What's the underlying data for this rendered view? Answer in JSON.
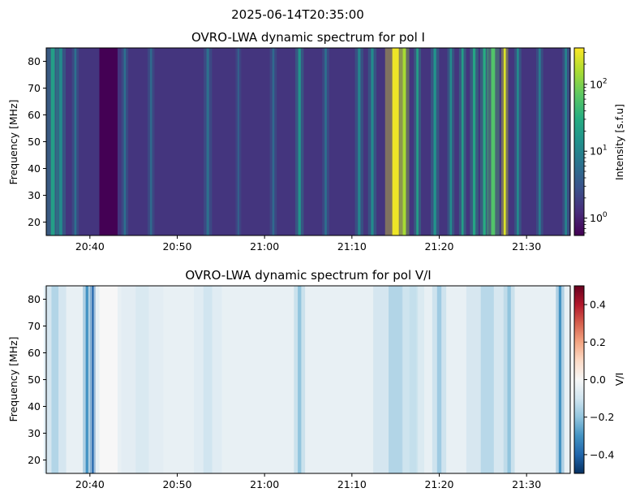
{
  "suptitle": "2025-06-14T20:35:00",
  "chart_data": [
    {
      "type": "heatmap",
      "title": "OVRO-LWA dynamic spectrum for pol I",
      "xlabel": "",
      "ylabel": "Frequency [MHz]",
      "x_range": [
        "20:35",
        "21:35"
      ],
      "x_ticks": [
        "20:40",
        "20:50",
        "21:00",
        "21:10",
        "21:20",
        "21:30"
      ],
      "ylim": [
        15,
        85
      ],
      "y_ticks": [
        20,
        30,
        40,
        50,
        60,
        70,
        80
      ],
      "colormap": "viridis",
      "colorbar": {
        "label": "Intensity [s.f.u]",
        "scale": "log",
        "range": [
          0.55,
          350
        ],
        "ticks": [
          {
            "base": "10",
            "exp": "0",
            "value": 1
          },
          {
            "base": "10",
            "exp": "1",
            "value": 10
          },
          {
            "base": "10",
            "exp": "2",
            "value": 100
          }
        ]
      },
      "background_level": 1.5,
      "features": [
        {
          "kind": "data-gap",
          "t_start": "20:41:05",
          "t_end": "20:43:10",
          "level": 0.55
        },
        {
          "kind": "burst",
          "t": "20:35:45",
          "width_min": 0.45,
          "level": 20
        },
        {
          "kind": "burst",
          "t": "20:36:40",
          "width_min": 0.35,
          "level": 12
        },
        {
          "kind": "burst",
          "t": "20:38:20",
          "width_min": 0.25,
          "level": 6
        },
        {
          "kind": "burst",
          "t": "20:44:00",
          "width_min": 0.25,
          "level": 6
        },
        {
          "kind": "burst",
          "t": "20:47:00",
          "width_min": 0.25,
          "level": 5
        },
        {
          "kind": "burst",
          "t": "20:53:30",
          "width_min": 0.3,
          "level": 6
        },
        {
          "kind": "burst",
          "t": "20:57:00",
          "width_min": 0.2,
          "level": 4
        },
        {
          "kind": "burst",
          "t": "21:01:00",
          "width_min": 0.25,
          "level": 5
        },
        {
          "kind": "burst",
          "t": "21:04:00",
          "width_min": 0.3,
          "level": 15
        },
        {
          "kind": "burst",
          "t": "21:07:00",
          "width_min": 0.25,
          "level": 6
        },
        {
          "kind": "burst",
          "t": "21:10:50",
          "width_min": 0.3,
          "level": 10
        },
        {
          "kind": "burst",
          "t": "21:12:20",
          "width_min": 0.3,
          "level": 12
        },
        {
          "kind": "burst",
          "t": "21:15:00",
          "width_min": 0.75,
          "level": 300
        },
        {
          "kind": "burst",
          "t": "21:16:00",
          "width_min": 0.35,
          "level": 150
        },
        {
          "kind": "burst",
          "t": "21:17:30",
          "width_min": 0.25,
          "level": 20
        },
        {
          "kind": "burst",
          "t": "21:19:30",
          "width_min": 0.3,
          "level": 15
        },
        {
          "kind": "burst",
          "t": "21:21:20",
          "width_min": 0.25,
          "level": 12
        },
        {
          "kind": "burst",
          "t": "21:22:40",
          "width_min": 0.25,
          "level": 20
        },
        {
          "kind": "burst",
          "t": "21:24:00",
          "width_min": 0.3,
          "level": 25
        },
        {
          "kind": "burst",
          "t": "21:25:10",
          "width_min": 0.3,
          "level": 30
        },
        {
          "kind": "burst",
          "t": "21:26:10",
          "width_min": 0.45,
          "level": 60
        },
        {
          "kind": "burst",
          "t": "21:27:30",
          "width_min": 0.25,
          "level": 250
        },
        {
          "kind": "burst",
          "t": "21:29:00",
          "width_min": 0.25,
          "level": 12
        },
        {
          "kind": "burst",
          "t": "21:31:30",
          "width_min": 0.25,
          "level": 8
        },
        {
          "kind": "burst",
          "t": "21:34:30",
          "width_min": 0.25,
          "level": 10
        }
      ]
    },
    {
      "type": "heatmap",
      "title": "OVRO-LWA dynamic spectrum for pol V/I",
      "xlabel": "",
      "ylabel": "Frequency [MHz]",
      "x_range": [
        "20:35",
        "21:35"
      ],
      "x_ticks": [
        "20:40",
        "20:50",
        "21:00",
        "21:10",
        "21:20",
        "21:30"
      ],
      "ylim": [
        15,
        85
      ],
      "y_ticks": [
        20,
        30,
        40,
        50,
        60,
        70,
        80
      ],
      "colormap": "RdBu_r",
      "colorbar": {
        "label": "V/I",
        "scale": "linear",
        "range": [
          -0.5,
          0.5
        ],
        "ticks": [
          "−0.4",
          "−0.2",
          "0.0",
          "0.2",
          "0.4"
        ],
        "tick_values": [
          -0.4,
          -0.2,
          0.0,
          0.2,
          0.4
        ]
      },
      "background_level": -0.04,
      "features": [
        {
          "kind": "gap",
          "t_start": "20:41:05",
          "t_end": "20:43:10",
          "level": 0.0
        },
        {
          "kind": "stripe",
          "t": "20:36:00",
          "width_min": 0.8,
          "level": -0.15
        },
        {
          "kind": "stripe",
          "t": "20:39:40",
          "width_min": 0.3,
          "level": -0.3
        },
        {
          "kind": "stripe",
          "t": "20:40:20",
          "width_min": 0.2,
          "level": -0.4
        },
        {
          "kind": "stripe",
          "t": "20:46:00",
          "width_min": 1.5,
          "level": -0.08
        },
        {
          "kind": "stripe",
          "t": "20:53:30",
          "width_min": 1.0,
          "level": -0.1
        },
        {
          "kind": "stripe",
          "t": "21:04:00",
          "width_min": 0.4,
          "level": -0.2
        },
        {
          "kind": "stripe",
          "t": "21:15:00",
          "width_min": 1.6,
          "level": -0.15
        },
        {
          "kind": "stripe",
          "t": "21:17:00",
          "width_min": 0.8,
          "level": -0.12
        },
        {
          "kind": "stripe",
          "t": "21:20:00",
          "width_min": 0.5,
          "level": -0.18
        },
        {
          "kind": "stripe",
          "t": "21:25:30",
          "width_min": 1.5,
          "level": -0.14
        },
        {
          "kind": "stripe",
          "t": "21:28:00",
          "width_min": 0.4,
          "level": -0.2
        },
        {
          "kind": "stripe",
          "t": "21:33:50",
          "width_min": 0.3,
          "level": -0.3
        }
      ]
    }
  ]
}
